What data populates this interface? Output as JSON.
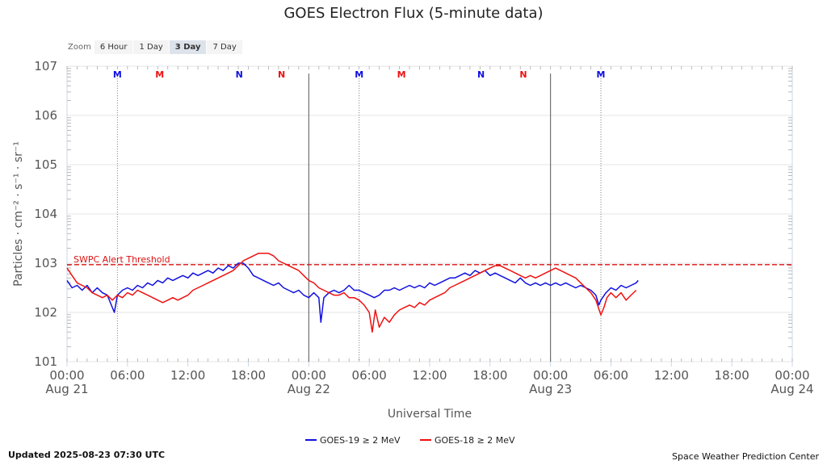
{
  "title": "GOES Electron Flux (5-minute data)",
  "zoom": {
    "label": "Zoom",
    "buttons": [
      "6 Hour",
      "1 Day",
      "3 Day",
      "7 Day"
    ],
    "active": "3 Day"
  },
  "updated": "Updated 2025-08-23 07:30 UTC",
  "credit": "Space Weather Prediction Center",
  "colors": {
    "goes19": "#1010e0",
    "goes18": "#ee1111",
    "threshold": "#dd1111",
    "grid": "#e6e6e6"
  },
  "chart_data": {
    "type": "line",
    "title": "GOES Electron Flux (5-minute data)",
    "xlabel": "Universal Time",
    "ylabel": "Particles · cm⁻² · s⁻¹ · sr⁻¹",
    "x_units": "hours since 00:00 Aug 21 UTC",
    "xlim": [
      0,
      72
    ],
    "ylim": [
      1,
      7
    ],
    "y_scale": "log",
    "y_ticks": [
      {
        "value": 7,
        "label": "107"
      },
      {
        "value": 6,
        "label": "106"
      },
      {
        "value": 5,
        "label": "105"
      },
      {
        "value": 4,
        "label": "104"
      },
      {
        "value": 3,
        "label": "103"
      },
      {
        "value": 2,
        "label": "102"
      },
      {
        "value": 1,
        "label": "101"
      }
    ],
    "x_ticks": [
      {
        "value": 0,
        "label": "00:00",
        "date": "Aug 21"
      },
      {
        "value": 6,
        "label": "06:00"
      },
      {
        "value": 12,
        "label": "12:00"
      },
      {
        "value": 18,
        "label": "18:00"
      },
      {
        "value": 24,
        "label": "00:00",
        "date": "Aug 22"
      },
      {
        "value": 30,
        "label": "06:00"
      },
      {
        "value": 36,
        "label": "12:00"
      },
      {
        "value": 42,
        "label": "18:00"
      },
      {
        "value": 48,
        "label": "00:00",
        "date": "Aug 23"
      },
      {
        "value": 54,
        "label": "06:00"
      },
      {
        "value": 60,
        "label": "12:00"
      },
      {
        "value": 66,
        "label": "18:00"
      },
      {
        "value": 72,
        "label": "00:00",
        "date": "Aug 24"
      }
    ],
    "day_lines": [
      24,
      48
    ],
    "noon_midnight_lines": [
      5,
      29,
      53
    ],
    "markers": [
      {
        "x": 5,
        "label": "M",
        "color": "#1010e0"
      },
      {
        "x": 9.2,
        "label": "M",
        "color": "#ee1111"
      },
      {
        "x": 17.1,
        "label": "N",
        "color": "#1010e0"
      },
      {
        "x": 21.3,
        "label": "N",
        "color": "#ee1111"
      },
      {
        "x": 29,
        "label": "M",
        "color": "#1010e0"
      },
      {
        "x": 33.2,
        "label": "M",
        "color": "#ee1111"
      },
      {
        "x": 41.1,
        "label": "N",
        "color": "#1010e0"
      },
      {
        "x": 45.3,
        "label": "N",
        "color": "#ee1111"
      },
      {
        "x": 53,
        "label": "M",
        "color": "#1010e0"
      }
    ],
    "threshold": {
      "value": 2.97,
      "label": "SWPC Alert Threshold"
    },
    "legend": "bottom-center",
    "grid": true,
    "series": [
      {
        "name": "GOES-19 ≥ 2 MeV",
        "color": "#1010e0",
        "points": [
          [
            0,
            2.65
          ],
          [
            0.5,
            2.5
          ],
          [
            1,
            2.55
          ],
          [
            1.5,
            2.45
          ],
          [
            2,
            2.55
          ],
          [
            2.5,
            2.4
          ],
          [
            3,
            2.5
          ],
          [
            3.5,
            2.4
          ],
          [
            4,
            2.35
          ],
          [
            4.5,
            2.1
          ],
          [
            4.7,
            2.0
          ],
          [
            5,
            2.35
          ],
          [
            5.5,
            2.45
          ],
          [
            6,
            2.5
          ],
          [
            6.5,
            2.45
          ],
          [
            7,
            2.55
          ],
          [
            7.5,
            2.5
          ],
          [
            8,
            2.6
          ],
          [
            8.5,
            2.55
          ],
          [
            9,
            2.65
          ],
          [
            9.5,
            2.6
          ],
          [
            10,
            2.7
          ],
          [
            10.5,
            2.65
          ],
          [
            11,
            2.7
          ],
          [
            11.5,
            2.75
          ],
          [
            12,
            2.7
          ],
          [
            12.5,
            2.8
          ],
          [
            13,
            2.75
          ],
          [
            13.5,
            2.8
          ],
          [
            14,
            2.85
          ],
          [
            14.5,
            2.8
          ],
          [
            15,
            2.9
          ],
          [
            15.5,
            2.85
          ],
          [
            16,
            2.95
          ],
          [
            16.5,
            2.9
          ],
          [
            17,
            3.0
          ],
          [
            17.5,
            3.0
          ],
          [
            18,
            2.9
          ],
          [
            18.5,
            2.75
          ],
          [
            19,
            2.7
          ],
          [
            19.5,
            2.65
          ],
          [
            20,
            2.6
          ],
          [
            20.5,
            2.55
          ],
          [
            21,
            2.6
          ],
          [
            21.5,
            2.5
          ],
          [
            22,
            2.45
          ],
          [
            22.5,
            2.4
          ],
          [
            23,
            2.45
          ],
          [
            23.5,
            2.35
          ],
          [
            24,
            2.3
          ],
          [
            24.5,
            2.4
          ],
          [
            25,
            2.3
          ],
          [
            25.2,
            1.8
          ],
          [
            25.5,
            2.3
          ],
          [
            26,
            2.4
          ],
          [
            26.5,
            2.45
          ],
          [
            27,
            2.4
          ],
          [
            27.5,
            2.45
          ],
          [
            28,
            2.55
          ],
          [
            28.5,
            2.45
          ],
          [
            29,
            2.45
          ],
          [
            29.5,
            2.4
          ],
          [
            30,
            2.35
          ],
          [
            30.5,
            2.3
          ],
          [
            31,
            2.35
          ],
          [
            31.5,
            2.45
          ],
          [
            32,
            2.45
          ],
          [
            32.5,
            2.5
          ],
          [
            33,
            2.45
          ],
          [
            33.5,
            2.5
          ],
          [
            34,
            2.55
          ],
          [
            34.5,
            2.5
          ],
          [
            35,
            2.55
          ],
          [
            35.5,
            2.5
          ],
          [
            36,
            2.6
          ],
          [
            36.5,
            2.55
          ],
          [
            37,
            2.6
          ],
          [
            37.5,
            2.65
          ],
          [
            38,
            2.7
          ],
          [
            38.5,
            2.7
          ],
          [
            39,
            2.75
          ],
          [
            39.5,
            2.8
          ],
          [
            40,
            2.75
          ],
          [
            40.5,
            2.85
          ],
          [
            41,
            2.8
          ],
          [
            41.5,
            2.85
          ],
          [
            42,
            2.75
          ],
          [
            42.5,
            2.8
          ],
          [
            43,
            2.75
          ],
          [
            43.5,
            2.7
          ],
          [
            44,
            2.65
          ],
          [
            44.5,
            2.6
          ],
          [
            45,
            2.7
          ],
          [
            45.5,
            2.6
          ],
          [
            46,
            2.55
          ],
          [
            46.5,
            2.6
          ],
          [
            47,
            2.55
          ],
          [
            47.5,
            2.6
          ],
          [
            48,
            2.55
          ],
          [
            48.5,
            2.6
          ],
          [
            49,
            2.55
          ],
          [
            49.5,
            2.6
          ],
          [
            50,
            2.55
          ],
          [
            50.5,
            2.5
          ],
          [
            51,
            2.55
          ],
          [
            51.5,
            2.5
          ],
          [
            52,
            2.45
          ],
          [
            52.5,
            2.35
          ],
          [
            52.8,
            2.15
          ],
          [
            53,
            2.25
          ],
          [
            53.5,
            2.4
          ],
          [
            54,
            2.5
          ],
          [
            54.5,
            2.45
          ],
          [
            55,
            2.55
          ],
          [
            55.5,
            2.5
          ],
          [
            56,
            2.55
          ],
          [
            56.5,
            2.6
          ],
          [
            56.7,
            2.65
          ]
        ]
      },
      {
        "name": "GOES-18 ≥ 2 MeV",
        "color": "#ee1111",
        "points": [
          [
            0,
            2.9
          ],
          [
            0.5,
            2.75
          ],
          [
            1,
            2.6
          ],
          [
            1.5,
            2.55
          ],
          [
            2,
            2.5
          ],
          [
            2.5,
            2.4
          ],
          [
            3,
            2.35
          ],
          [
            3.5,
            2.3
          ],
          [
            4,
            2.35
          ],
          [
            4.5,
            2.25
          ],
          [
            5,
            2.35
          ],
          [
            5.5,
            2.3
          ],
          [
            6,
            2.4
          ],
          [
            6.5,
            2.35
          ],
          [
            7,
            2.45
          ],
          [
            7.5,
            2.4
          ],
          [
            8,
            2.35
          ],
          [
            8.5,
            2.3
          ],
          [
            9,
            2.25
          ],
          [
            9.5,
            2.2
          ],
          [
            10,
            2.25
          ],
          [
            10.5,
            2.3
          ],
          [
            11,
            2.25
          ],
          [
            11.5,
            2.3
          ],
          [
            12,
            2.35
          ],
          [
            12.5,
            2.45
          ],
          [
            13,
            2.5
          ],
          [
            13.5,
            2.55
          ],
          [
            14,
            2.6
          ],
          [
            14.5,
            2.65
          ],
          [
            15,
            2.7
          ],
          [
            15.5,
            2.75
          ],
          [
            16,
            2.8
          ],
          [
            16.5,
            2.85
          ],
          [
            17,
            2.95
          ],
          [
            17.5,
            3.05
          ],
          [
            18,
            3.1
          ],
          [
            18.5,
            3.15
          ],
          [
            19,
            3.2
          ],
          [
            19.5,
            3.2
          ],
          [
            20,
            3.2
          ],
          [
            20.5,
            3.15
          ],
          [
            21,
            3.05
          ],
          [
            21.5,
            3.0
          ],
          [
            22,
            2.95
          ],
          [
            22.5,
            2.9
          ],
          [
            23,
            2.85
          ],
          [
            23.5,
            2.75
          ],
          [
            24,
            2.65
          ],
          [
            24.5,
            2.6
          ],
          [
            25,
            2.5
          ],
          [
            25.5,
            2.45
          ],
          [
            26,
            2.4
          ],
          [
            26.5,
            2.35
          ],
          [
            27,
            2.35
          ],
          [
            27.5,
            2.4
          ],
          [
            28,
            2.3
          ],
          [
            28.5,
            2.3
          ],
          [
            29,
            2.25
          ],
          [
            29.5,
            2.15
          ],
          [
            30,
            2.0
          ],
          [
            30.3,
            1.6
          ],
          [
            30.6,
            2.05
          ],
          [
            31,
            1.7
          ],
          [
            31.5,
            1.9
          ],
          [
            32,
            1.8
          ],
          [
            32.5,
            1.95
          ],
          [
            33,
            2.05
          ],
          [
            33.5,
            2.1
          ],
          [
            34,
            2.15
          ],
          [
            34.5,
            2.1
          ],
          [
            35,
            2.2
          ],
          [
            35.5,
            2.15
          ],
          [
            36,
            2.25
          ],
          [
            36.5,
            2.3
          ],
          [
            37,
            2.35
          ],
          [
            37.5,
            2.4
          ],
          [
            38,
            2.5
          ],
          [
            38.5,
            2.55
          ],
          [
            39,
            2.6
          ],
          [
            39.5,
            2.65
          ],
          [
            40,
            2.7
          ],
          [
            40.5,
            2.75
          ],
          [
            41,
            2.8
          ],
          [
            41.5,
            2.85
          ],
          [
            42,
            2.9
          ],
          [
            42.5,
            2.95
          ],
          [
            43,
            2.95
          ],
          [
            43.5,
            2.9
          ],
          [
            44,
            2.85
          ],
          [
            44.5,
            2.8
          ],
          [
            45,
            2.75
          ],
          [
            45.5,
            2.7
          ],
          [
            46,
            2.75
          ],
          [
            46.5,
            2.7
          ],
          [
            47,
            2.75
          ],
          [
            47.5,
            2.8
          ],
          [
            48,
            2.85
          ],
          [
            48.5,
            2.9
          ],
          [
            49,
            2.85
          ],
          [
            49.5,
            2.8
          ],
          [
            50,
            2.75
          ],
          [
            50.5,
            2.7
          ],
          [
            51,
            2.6
          ],
          [
            51.5,
            2.5
          ],
          [
            52,
            2.4
          ],
          [
            52.5,
            2.25
          ],
          [
            53,
            1.95
          ],
          [
            53.3,
            2.1
          ],
          [
            53.6,
            2.3
          ],
          [
            54,
            2.4
          ],
          [
            54.5,
            2.3
          ],
          [
            55,
            2.4
          ],
          [
            55.5,
            2.25
          ],
          [
            56,
            2.35
          ],
          [
            56.5,
            2.45
          ]
        ]
      }
    ]
  }
}
